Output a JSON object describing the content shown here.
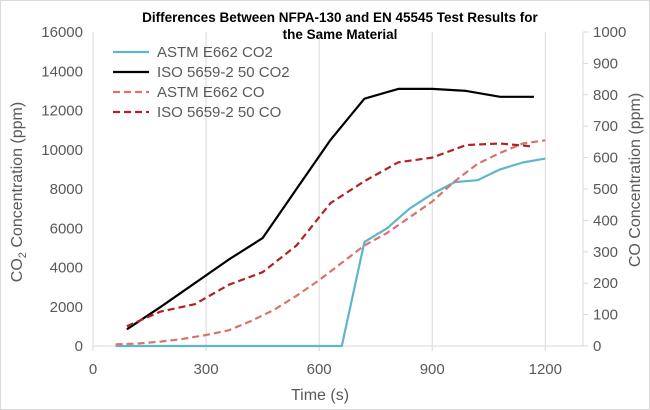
{
  "chart_data": {
    "type": "line",
    "title_lines": [
      "Differences Between NFPA-130 and EN 45545 Test Results for",
      "the Same Material"
    ],
    "xlabel": "Time (s)",
    "ylabel_left_prefix": "CO",
    "ylabel_left_sub": "2",
    "ylabel_left_suffix": " Concentration (ppm)",
    "ylabel_right": "CO Concentration (ppm)",
    "xlim": [
      0,
      1300
    ],
    "xticks": [
      0,
      300,
      600,
      900,
      1200
    ],
    "ylim_left": [
      0,
      16000
    ],
    "yticks_left": [
      0,
      2000,
      4000,
      6000,
      8000,
      10000,
      12000,
      14000,
      16000
    ],
    "ylim_right": [
      0,
      1000
    ],
    "yticks_right": [
      0,
      100,
      200,
      300,
      400,
      500,
      600,
      700,
      800,
      900,
      1000
    ],
    "grid": "vertical",
    "legend_position": "top-left",
    "series": [
      {
        "name": "ASTM E662 CO2",
        "axis": "left",
        "color": "#5eb7c9",
        "dash": "solid",
        "x": [
          60,
          660,
          720,
          780,
          840,
          900,
          960,
          1020,
          1080,
          1140,
          1200
        ],
        "y": [
          0,
          0,
          5300,
          6000,
          7000,
          7750,
          8350,
          8450,
          9000,
          9350,
          9550
        ]
      },
      {
        "name": "ISO 5659-2 50 CO2",
        "axis": "left",
        "color": "#000000",
        "dash": "solid",
        "x": [
          90,
          180,
          270,
          360,
          450,
          540,
          630,
          720,
          810,
          900,
          990,
          1080,
          1170
        ],
        "y": [
          850,
          2000,
          3200,
          4400,
          5500,
          8000,
          10500,
          12600,
          13100,
          13100,
          13000,
          12700,
          12700
        ]
      },
      {
        "name": "ASTM E662 CO",
        "axis": "right",
        "color": "#d9736e",
        "dash": "dashed",
        "x": [
          60,
          120,
          180,
          240,
          300,
          360,
          420,
          480,
          540,
          600,
          660,
          720,
          780,
          840,
          900,
          960,
          1020,
          1080,
          1140,
          1200
        ],
        "y": [
          5,
          8,
          14,
          23,
          35,
          50,
          80,
          115,
          160,
          210,
          265,
          320,
          360,
          410,
          460,
          525,
          580,
          615,
          645,
          655
        ]
      },
      {
        "name": "ISO 5659-2 50 CO",
        "axis": "right",
        "color": "#b22222",
        "dash": "dashed",
        "x": [
          90,
          180,
          270,
          360,
          450,
          540,
          630,
          720,
          810,
          900,
          990,
          1080,
          1170
        ],
        "y": [
          63,
          110,
          133,
          195,
          235,
          320,
          455,
          525,
          585,
          600,
          640,
          645,
          635
        ]
      }
    ]
  }
}
